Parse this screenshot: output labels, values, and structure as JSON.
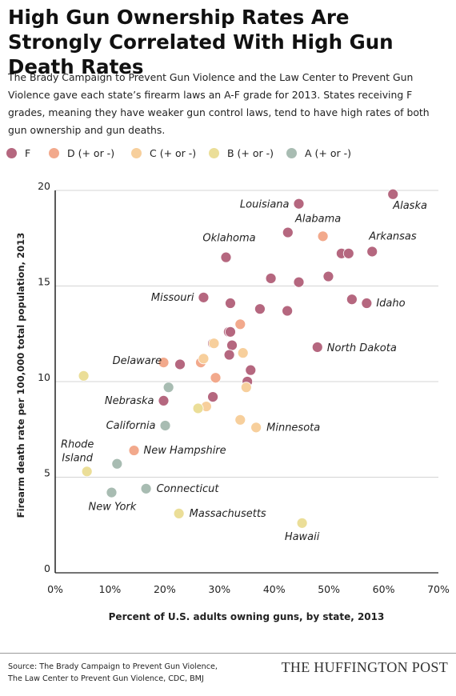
{
  "title": "High Gun Ownership Rates Are Strongly Correlated With High Gun Death Rates",
  "subtitle": "The Brady Campaign to Prevent Gun Violence and the Law Center to Prevent Gun Violence gave each state’s firearm laws an A-F grade for 2013. States receiving F grades, meaning they have weaker gun control laws, tend to have high rates of both gun ownership and gun deaths.",
  "legend": [
    {
      "label": "F",
      "color": "#b5677f"
    },
    {
      "label": "D (+ or -)",
      "color": "#f2a98c"
    },
    {
      "label": "C (+ or -)",
      "color": "#f7cf9c"
    },
    {
      "label": "B (+ or -)",
      "color": "#ebde98"
    },
    {
      "label": "A (+ or -)",
      "color": "#a8bcb2"
    }
  ],
  "chart_data": {
    "type": "scatter",
    "xlabel": "Percent of U.S. adults owning guns, by state, 2013",
    "ylabel": "Firearm death rate per 100,000 total population, 2013",
    "xlim": [
      0,
      70
    ],
    "ylim": [
      0,
      20
    ],
    "x_ticks": [
      "0%",
      "10%",
      "20%",
      "30%",
      "40%",
      "50%",
      "60%",
      "70%"
    ],
    "y_ticks": [
      "0",
      "5",
      "10",
      "15",
      "20"
    ],
    "grid": "horizontal",
    "series": [
      {
        "name": "F",
        "color": "#b5677f",
        "points": [
          {
            "x": 61.7,
            "y": 19.8,
            "label": "Alaska"
          },
          {
            "x": 44.5,
            "y": 19.3,
            "label": "Louisiana"
          },
          {
            "x": 42.5,
            "y": 17.8
          },
          {
            "x": 57.9,
            "y": 16.8,
            "label": "Arkansas"
          },
          {
            "x": 52.3,
            "y": 16.7
          },
          {
            "x": 53.6,
            "y": 16.7
          },
          {
            "x": 31.2,
            "y": 16.5,
            "label": "Oklahoma"
          },
          {
            "x": 39.4,
            "y": 15.4
          },
          {
            "x": 49.9,
            "y": 15.5
          },
          {
            "x": 44.5,
            "y": 15.2
          },
          {
            "x": 27.1,
            "y": 14.4,
            "label": "Missouri"
          },
          {
            "x": 54.2,
            "y": 14.3
          },
          {
            "x": 56.9,
            "y": 14.1,
            "label": "Idaho"
          },
          {
            "x": 32.0,
            "y": 14.1
          },
          {
            "x": 37.4,
            "y": 13.8
          },
          {
            "x": 42.4,
            "y": 13.7
          },
          {
            "x": 31.7,
            "y": 12.6
          },
          {
            "x": 32.0,
            "y": 12.6
          },
          {
            "x": 47.9,
            "y": 11.8,
            "label": "North Dakota"
          },
          {
            "x": 28.8,
            "y": 12.0
          },
          {
            "x": 32.3,
            "y": 11.9
          },
          {
            "x": 31.8,
            "y": 11.4
          },
          {
            "x": 22.8,
            "y": 10.9
          },
          {
            "x": 35.7,
            "y": 10.6
          },
          {
            "x": 35.1,
            "y": 10.0
          },
          {
            "x": 19.8,
            "y": 9.0,
            "label": "Nebraska"
          },
          {
            "x": 28.8,
            "y": 9.2
          }
        ]
      },
      {
        "name": "D (+ or -)",
        "color": "#f2a98c",
        "points": [
          {
            "x": 48.9,
            "y": 17.6,
            "label": "Alabama"
          },
          {
            "x": 33.8,
            "y": 13.0
          },
          {
            "x": 19.8,
            "y": 11.0
          },
          {
            "x": 26.6,
            "y": 11.0
          },
          {
            "x": 29.3,
            "y": 10.2
          },
          {
            "x": 14.4,
            "y": 6.4,
            "label": "New Hampshire"
          }
        ]
      },
      {
        "name": "C (+ or -)",
        "color": "#f7cf9c",
        "points": [
          {
            "x": 29.0,
            "y": 12.0
          },
          {
            "x": 27.1,
            "y": 11.2
          },
          {
            "x": 34.3,
            "y": 11.5
          },
          {
            "x": 34.9,
            "y": 9.7
          },
          {
            "x": 27.6,
            "y": 8.7
          },
          {
            "x": 33.8,
            "y": 8.0
          },
          {
            "x": 36.7,
            "y": 7.6,
            "label": "Minnesota"
          }
        ]
      },
      {
        "name": "B (+ or -)",
        "color": "#ebde98",
        "points": [
          {
            "x": 5.2,
            "y": 10.3,
            "label": "Delaware"
          },
          {
            "x": 26.1,
            "y": 8.6
          },
          {
            "x": 5.8,
            "y": 5.3,
            "label": "Rhode Island"
          },
          {
            "x": 22.6,
            "y": 3.1,
            "label": "Massachusetts"
          },
          {
            "x": 45.1,
            "y": 2.6,
            "label": "Hawaii"
          }
        ]
      },
      {
        "name": "A (+ or -)",
        "color": "#a8bcb2",
        "points": [
          {
            "x": 20.7,
            "y": 9.7
          },
          {
            "x": 20.1,
            "y": 7.7,
            "label": "California"
          },
          {
            "x": 11.3,
            "y": 5.7
          },
          {
            "x": 16.6,
            "y": 4.4,
            "label": "Connecticut"
          },
          {
            "x": 10.3,
            "y": 4.2,
            "label": "New York"
          }
        ]
      }
    ]
  },
  "footer": {
    "source_line1": "Source: The Brady Campaign to Prevent Gun Violence,",
    "source_line2": "The Law Center to Prevent Gun Violence, CDC, BMJ",
    "brand": "THE HUFFINGTON POST"
  }
}
